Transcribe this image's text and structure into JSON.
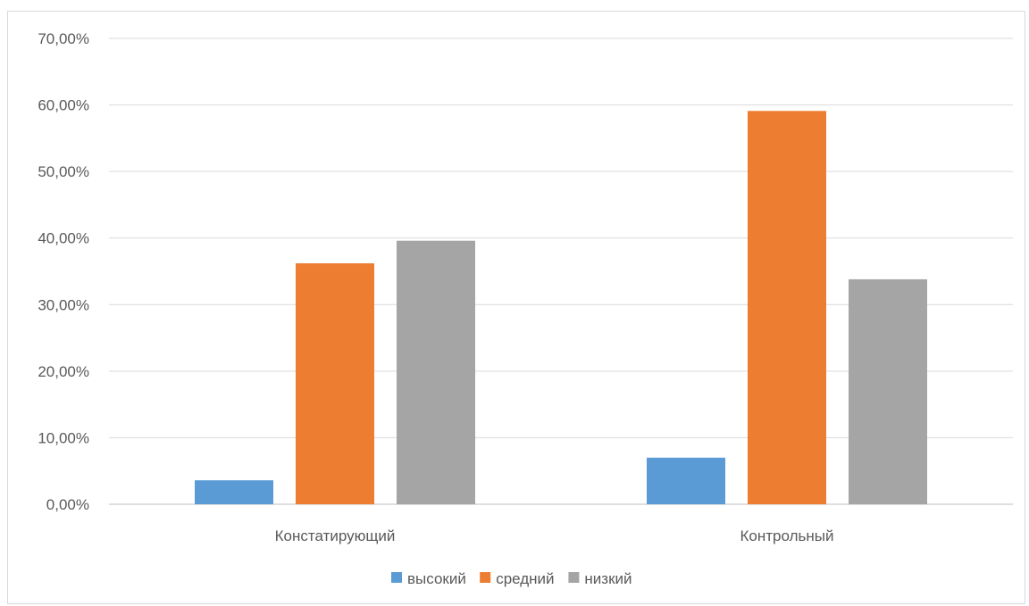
{
  "chart_data": {
    "type": "bar",
    "categories": [
      "Констатирующий",
      "Контрольный"
    ],
    "series": [
      {
        "name": "высокий",
        "values": [
          3.6,
          7.0
        ],
        "color": "#5B9BD5"
      },
      {
        "name": "средний",
        "values": [
          36.2,
          59.1
        ],
        "color": "#ED7D31"
      },
      {
        "name": "низкий",
        "values": [
          39.6,
          33.8
        ],
        "color": "#A5A5A5"
      }
    ],
    "ylim": [
      0,
      70
    ],
    "yticks": [
      0,
      10,
      20,
      30,
      40,
      50,
      60,
      70
    ],
    "ytick_labels": [
      "0,00%",
      "10,00%",
      "20,00%",
      "30,00%",
      "40,00%",
      "50,00%",
      "60,00%",
      "70,00%"
    ],
    "grid": true,
    "legend_position": "bottom",
    "title": "",
    "xlabel": "",
    "ylabel": ""
  }
}
